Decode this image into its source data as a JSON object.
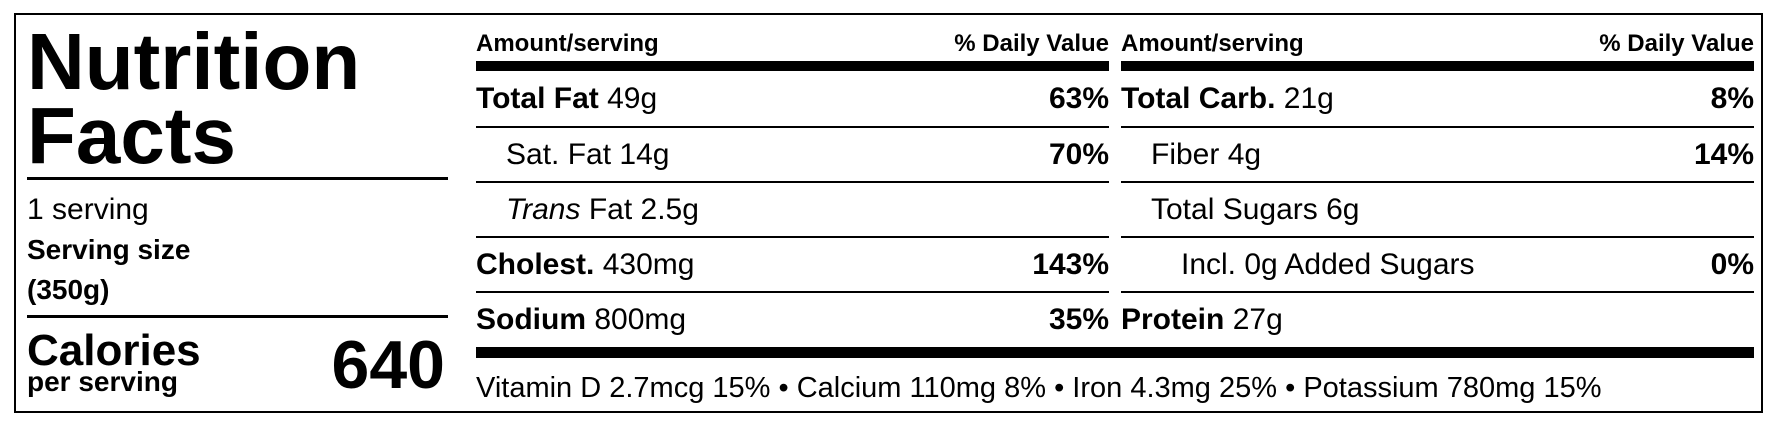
{
  "title": "Nutrition Facts",
  "servings": "1 serving",
  "serving_size_label": "Serving size",
  "serving_size": "(350g)",
  "calories_label": "Calories",
  "calories_sub": "per serving",
  "calories": "640",
  "columns": [
    {
      "header_amount": "Amount/serving",
      "header_dv": "% Daily Value",
      "rows": [
        {
          "label": "Total Fat",
          "amount": "49g",
          "dv": "63%",
          "bold": true,
          "indent": 0
        },
        {
          "label": "Sat. Fat",
          "amount": "14g",
          "dv": "70%",
          "bold": false,
          "indent": 1
        },
        {
          "italic": "Trans",
          "label": "Fat",
          "amount": "2.5g",
          "bold": false,
          "indent": 1
        },
        {
          "label": "Cholest.",
          "amount": "430mg",
          "dv": "143%",
          "bold": true,
          "indent": 0
        },
        {
          "label": "Sodium",
          "amount": "800mg",
          "dv": "35%",
          "bold": true,
          "indent": 0
        }
      ]
    },
    {
      "header_amount": "Amount/serving",
      "header_dv": "% Daily Value",
      "rows": [
        {
          "label": "Total Carb.",
          "amount": "21g",
          "dv": "8%",
          "bold": true,
          "indent": 0
        },
        {
          "label": "Fiber",
          "amount": "4g",
          "dv": "14%",
          "bold": false,
          "indent": 1
        },
        {
          "label": "Total Sugars",
          "amount": "6g",
          "bold": false,
          "indent": 1
        },
        {
          "label": "Incl. 0g Added Sugars",
          "dv": "0%",
          "bold": false,
          "indent": 2
        },
        {
          "label": "Protein",
          "amount": "27g",
          "bold": true,
          "indent": 0
        }
      ]
    }
  ],
  "separator": "•",
  "vitamins": [
    "Vitamin D 2.7mcg 15%",
    "Calcium 110mg 8%",
    "Iron 4.3mg 25%",
    "Potassium 780mg 15%"
  ]
}
